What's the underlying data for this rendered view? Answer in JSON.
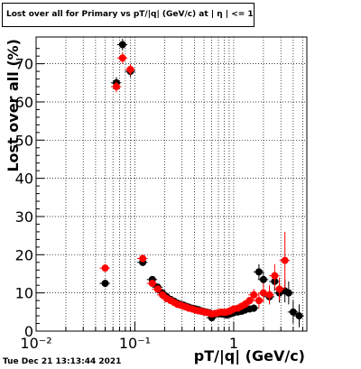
{
  "title": "Lost over all for Primary vs pT/|q| (GeV/c) at | η | <= 1.0",
  "datestamp": "Tue Dec 21 13:13:44 2021",
  "chart_data": {
    "type": "scatter",
    "title": "Lost over all for Primary vs pT/|q| (GeV/c) at | η | <= 1.0",
    "xlabel": "pT/|q| (GeV/c)",
    "ylabel": "Lost over all (%)",
    "xscale": "log",
    "xlim": [
      0.01,
      5.5
    ],
    "ylim": [
      0,
      77
    ],
    "grid": true,
    "x_tick_labels": [
      "10⁻²",
      "10⁻¹",
      "1"
    ],
    "y_tick_labels": [
      "0",
      "10",
      "20",
      "30",
      "40",
      "50",
      "60",
      "70"
    ],
    "series": [
      {
        "color": "#000000",
        "points": [
          [
            0.05,
            12.5
          ],
          [
            0.065,
            65
          ],
          [
            0.075,
            75
          ],
          [
            0.09,
            68
          ],
          [
            0.12,
            18
          ],
          [
            0.15,
            13.5
          ],
          [
            0.17,
            11.5
          ],
          [
            0.19,
            10
          ],
          [
            0.21,
            9
          ],
          [
            0.23,
            8.3
          ],
          [
            0.25,
            7.8
          ],
          [
            0.27,
            7.3
          ],
          [
            0.29,
            7
          ],
          [
            0.31,
            6.8
          ],
          [
            0.33,
            6.5
          ],
          [
            0.35,
            6.3
          ],
          [
            0.38,
            6
          ],
          [
            0.41,
            5.8
          ],
          [
            0.44,
            5.6
          ],
          [
            0.47,
            5.3
          ],
          [
            0.5,
            5.1
          ],
          [
            0.53,
            5
          ],
          [
            0.57,
            4.8
          ],
          [
            0.6,
            3.5
          ],
          [
            0.65,
            4.6
          ],
          [
            0.7,
            4.5
          ],
          [
            0.75,
            4.5
          ],
          [
            0.8,
            4.4
          ],
          [
            0.85,
            4.2
          ],
          [
            0.9,
            4.4
          ],
          [
            0.95,
            4.6
          ],
          [
            1.0,
            4.8
          ],
          [
            1.1,
            5
          ],
          [
            1.2,
            5.2
          ],
          [
            1.3,
            5.5
          ],
          [
            1.45,
            5.8
          ],
          [
            1.6,
            6
          ],
          [
            1.8,
            15.5
          ],
          [
            2.0,
            13.5
          ],
          [
            2.3,
            9
          ],
          [
            2.6,
            13
          ],
          [
            2.9,
            10
          ],
          [
            3.3,
            10.5
          ],
          [
            3.6,
            10
          ],
          [
            4.0,
            5
          ],
          [
            4.6,
            4
          ]
        ],
        "error_y": [
          1,
          1.5,
          1.5,
          1.5,
          1,
          0.8,
          0.6,
          0.5,
          0.4,
          0.4,
          0.3,
          0.3,
          0.3,
          0.3,
          0.3,
          0.3,
          0.3,
          0.3,
          0.3,
          0.3,
          0.3,
          0.3,
          0.3,
          0.5,
          0.3,
          0.3,
          0.3,
          0.3,
          0.3,
          0.4,
          0.4,
          0.5,
          0.5,
          0.6,
          0.7,
          0.8,
          1,
          2,
          2,
          2,
          2.5,
          2.5,
          3,
          3,
          3,
          3
        ]
      },
      {
        "color": "#ff0000",
        "points": [
          [
            0.05,
            16.5
          ],
          [
            0.065,
            64
          ],
          [
            0.075,
            71.5
          ],
          [
            0.09,
            68.5
          ],
          [
            0.12,
            19
          ],
          [
            0.15,
            12.5
          ],
          [
            0.17,
            11
          ],
          [
            0.19,
            9.5
          ],
          [
            0.21,
            8.5
          ],
          [
            0.23,
            8
          ],
          [
            0.25,
            7.5
          ],
          [
            0.27,
            7
          ],
          [
            0.29,
            6.8
          ],
          [
            0.31,
            6.5
          ],
          [
            0.33,
            6.3
          ],
          [
            0.35,
            6
          ],
          [
            0.38,
            5.8
          ],
          [
            0.41,
            5.5
          ],
          [
            0.44,
            5.3
          ],
          [
            0.47,
            5.2
          ],
          [
            0.5,
            5
          ],
          [
            0.53,
            4.9
          ],
          [
            0.57,
            4.7
          ],
          [
            0.6,
            4.5
          ],
          [
            0.65,
            4.6
          ],
          [
            0.7,
            4.8
          ],
          [
            0.75,
            5
          ],
          [
            0.8,
            4.9
          ],
          [
            0.85,
            5
          ],
          [
            0.9,
            5.2
          ],
          [
            0.95,
            5.5
          ],
          [
            1.0,
            5.8
          ],
          [
            1.1,
            6
          ],
          [
            1.2,
            6.5
          ],
          [
            1.3,
            7
          ],
          [
            1.45,
            8
          ],
          [
            1.6,
            9.5
          ],
          [
            1.8,
            8
          ],
          [
            2.0,
            10
          ],
          [
            2.3,
            9.5
          ],
          [
            2.6,
            14.5
          ],
          [
            2.9,
            11
          ],
          [
            3.3,
            18.5
          ]
        ],
        "error_y": [
          1,
          1.5,
          1.5,
          1.5,
          1,
          0.8,
          0.6,
          0.5,
          0.4,
          0.4,
          0.3,
          0.3,
          0.3,
          0.3,
          0.3,
          0.3,
          0.3,
          0.3,
          0.3,
          0.3,
          0.3,
          0.3,
          0.3,
          0.3,
          0.3,
          0.3,
          0.3,
          0.3,
          0.3,
          0.4,
          0.4,
          0.5,
          0.5,
          0.6,
          0.8,
          1,
          1.5,
          2,
          2.5,
          2.5,
          3,
          3,
          7.5
        ]
      }
    ]
  }
}
